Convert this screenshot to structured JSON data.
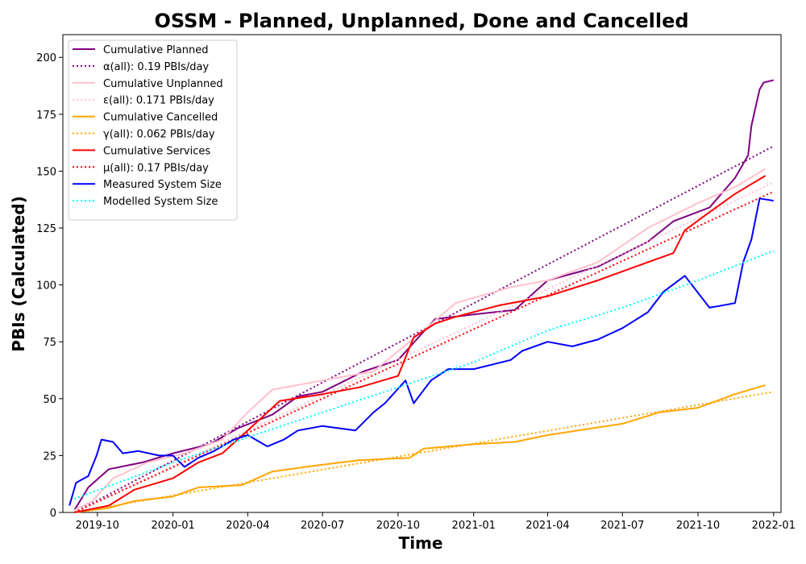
{
  "chart_data": {
    "type": "line",
    "title": "OSSM - Planned, Unplanned, Done  and Cancelled",
    "xlabel": "Time",
    "ylabel": "PBIs (Calculated)",
    "x_axis_type": "date",
    "xlim": [
      "2019-08-20",
      "2022-01-10"
    ],
    "ylim": [
      0,
      210
    ],
    "x_ticks": [
      "2019-10-01",
      "2020-01-01",
      "2020-04-01",
      "2020-07-01",
      "2020-10-01",
      "2021-01-01",
      "2021-04-01",
      "2021-07-01",
      "2021-10-01",
      "2022-01-01"
    ],
    "x_tick_labels": [
      "2019-10",
      "2020-01",
      "2020-04",
      "2020-07",
      "2020-10",
      "2021-01",
      "2021-04",
      "2021-07",
      "2021-10",
      "2022-01"
    ],
    "y_ticks": [
      0,
      25,
      50,
      75,
      100,
      125,
      150,
      175,
      200
    ],
    "grid": false,
    "legend_position": "top-left",
    "series": [
      {
        "name": "Cumulative Planned",
        "color": "#800080",
        "style": "solid",
        "x": [
          "2019-09-03",
          "2019-09-20",
          "2019-10-15",
          "2019-11-25",
          "2020-01-01",
          "2020-02-15",
          "2020-03-20",
          "2020-05-01",
          "2020-06-01",
          "2020-07-01",
          "2020-08-20",
          "2020-10-01",
          "2020-11-15",
          "2021-01-01",
          "2021-02-20",
          "2021-04-01",
          "2021-06-01",
          "2021-08-01",
          "2021-09-01",
          "2021-10-15",
          "2021-11-15",
          "2021-12-01",
          "2021-12-05",
          "2021-12-10",
          "2021-12-15",
          "2021-12-20",
          "2022-01-01"
        ],
        "values": [
          1,
          11,
          19,
          22,
          26,
          30,
          37,
          43,
          51,
          53,
          62,
          67,
          85,
          87,
          89,
          102,
          108,
          119,
          128,
          134,
          147,
          157,
          170,
          178,
          186,
          189,
          190
        ]
      },
      {
        "name": "α(all): 0.19 PBIs/day",
        "color": "#800080",
        "style": "dotted",
        "x": [
          "2019-09-03",
          "2022-01-01"
        ],
        "values": [
          0,
          161
        ]
      },
      {
        "name": "Cumulative Unplanned",
        "color": "#ffc0cb",
        "style": "solid",
        "x": [
          "2019-09-03",
          "2019-09-25",
          "2019-10-20",
          "2019-12-01",
          "2020-01-15",
          "2020-03-01",
          "2020-04-01",
          "2020-05-01",
          "2020-06-01",
          "2020-07-01",
          "2020-09-01",
          "2020-11-01",
          "2020-12-10",
          "2021-02-15",
          "2021-04-01",
          "2021-06-01",
          "2021-08-01",
          "2021-10-01",
          "2021-11-15",
          "2021-12-22"
        ],
        "values": [
          1,
          5,
          15,
          22,
          26,
          32,
          44,
          54,
          56,
          58,
          62,
          80,
          92,
          99,
          102,
          110,
          125,
          136,
          143,
          151
        ]
      },
      {
        "name": "ε(all): 0.171 PBIs/day",
        "color": "#ffc0cb",
        "style": "dotted",
        "x": [
          "2019-09-03",
          "2022-01-01"
        ],
        "values": [
          0,
          145
        ]
      },
      {
        "name": "Cumulative Cancelled",
        "color": "#ffa500",
        "style": "solid",
        "x": [
          "2019-09-03",
          "2019-10-15",
          "2019-11-15",
          "2020-01-01",
          "2020-02-01",
          "2020-03-25",
          "2020-05-01",
          "2020-07-01",
          "2020-08-15",
          "2020-10-15",
          "2020-11-01",
          "2021-01-01",
          "2021-02-20",
          "2021-04-01",
          "2021-07-01",
          "2021-08-15",
          "2021-10-01",
          "2021-11-15",
          "2021-12-22"
        ],
        "values": [
          0,
          2,
          5,
          7,
          11,
          12,
          18,
          21,
          23,
          24,
          28,
          30,
          31,
          34,
          39,
          44,
          46,
          52,
          56
        ]
      },
      {
        "name": "γ(all): 0.062 PBIs/day",
        "color": "#ffa500",
        "style": "dotted",
        "x": [
          "2019-09-03",
          "2022-01-01"
        ],
        "values": [
          0,
          53
        ]
      },
      {
        "name": "Cumulative Services",
        "color": "#ff0000",
        "style": "solid",
        "x": [
          "2019-09-03",
          "2019-10-15",
          "2019-11-15",
          "2020-01-01",
          "2020-02-01",
          "2020-03-01",
          "2020-04-01",
          "2020-05-10",
          "2020-07-01",
          "2020-08-15",
          "2020-10-01",
          "2020-10-20",
          "2020-11-15",
          "2020-12-10",
          "2021-02-01",
          "2021-04-01",
          "2021-06-01",
          "2021-08-01",
          "2021-09-01",
          "2021-09-15",
          "2021-10-15",
          "2021-11-15",
          "2021-12-22"
        ],
        "values": [
          0,
          3,
          10,
          15,
          22,
          26,
          36,
          49,
          52,
          55,
          60,
          77,
          83,
          86,
          91,
          95,
          102,
          110,
          114,
          124,
          132,
          140,
          148
        ]
      },
      {
        "name": "μ(all): 0.17 PBIs/day",
        "color": "#ff0000",
        "style": "dotted",
        "x": [
          "2019-09-03",
          "2022-01-01"
        ],
        "values": [
          0,
          141
        ]
      },
      {
        "name": "Measured System Size",
        "color": "#0000ff",
        "style": "solid",
        "x": [
          "2019-08-28",
          "2019-09-05",
          "2019-09-20",
          "2019-09-30",
          "2019-10-06",
          "2019-10-20",
          "2019-11-01",
          "2019-11-20",
          "2019-12-15",
          "2020-01-01",
          "2020-01-15",
          "2020-02-01",
          "2020-02-20",
          "2020-03-15",
          "2020-04-01",
          "2020-04-25",
          "2020-05-15",
          "2020-06-01",
          "2020-07-01",
          "2020-08-10",
          "2020-09-01",
          "2020-09-15",
          "2020-10-10",
          "2020-10-20",
          "2020-11-10",
          "2020-12-01",
          "2021-01-01",
          "2021-02-15",
          "2021-03-01",
          "2021-04-01",
          "2021-05-01",
          "2021-06-01",
          "2021-07-01",
          "2021-08-01",
          "2021-08-20",
          "2021-09-15",
          "2021-10-15",
          "2021-11-15",
          "2021-11-25",
          "2021-12-05",
          "2021-12-15",
          "2022-01-01"
        ],
        "values": [
          3,
          13,
          16,
          25,
          32,
          31,
          26,
          27,
          25,
          25,
          20,
          24,
          27,
          32,
          34,
          29,
          32,
          36,
          38,
          36,
          44,
          48,
          58,
          48,
          58,
          63,
          63,
          67,
          71,
          75,
          73,
          76,
          81,
          88,
          97,
          104,
          90,
          92,
          110,
          120,
          138,
          137
        ]
      },
      {
        "name": "Modelled System Size",
        "color": "#00ffff",
        "style": "dotted",
        "x": [
          "2019-09-03",
          "2020-01-01",
          "2020-04-01",
          "2020-07-01",
          "2020-10-01",
          "2021-01-01",
          "2021-04-01",
          "2021-07-01",
          "2021-10-01",
          "2022-01-01"
        ],
        "values": [
          6,
          22,
          33,
          44,
          55,
          66,
          80,
          90,
          102,
          115
        ]
      }
    ]
  }
}
